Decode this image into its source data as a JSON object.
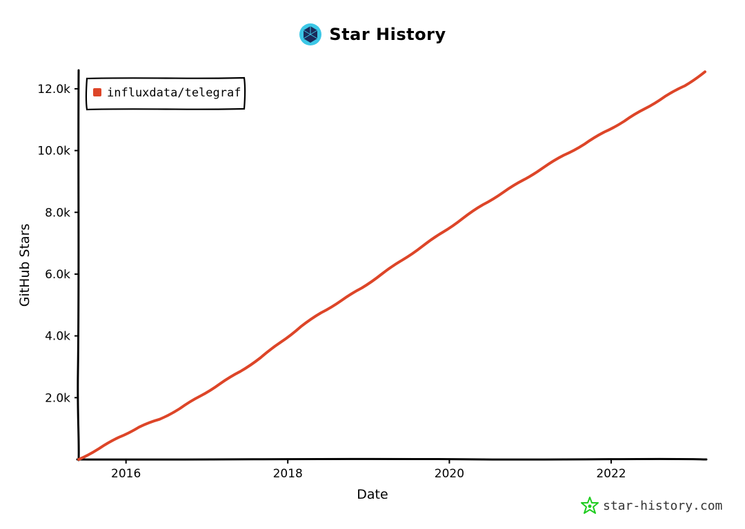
{
  "header": {
    "title": "Star History"
  },
  "watermark": {
    "text": "star-history.com"
  },
  "colors": {
    "series": "#dd4528",
    "axis": "#000000",
    "watermark_icon": "#1fcc1f",
    "logo_bg": "#3cc7e6",
    "logo_fg": "#1b2b5a"
  },
  "chart_data": {
    "type": "line",
    "xlabel": "Date",
    "ylabel": "GitHub Stars",
    "xlim": [
      "2015-06-01",
      "2023-03-01"
    ],
    "ylim": [
      0,
      12600
    ],
    "x_ticks": [
      "2016",
      "2018",
      "2020",
      "2022"
    ],
    "y_ticks": [
      {
        "value": 2000,
        "label": "2.0k"
      },
      {
        "value": 4000,
        "label": "4.0k"
      },
      {
        "value": 6000,
        "label": "6.0k"
      },
      {
        "value": 8000,
        "label": "8.0k"
      },
      {
        "value": 10000,
        "label": "10.0k"
      },
      {
        "value": 12000,
        "label": "12.0k"
      }
    ],
    "legend_position": "top-left",
    "series": [
      {
        "name": "influxdata/telegraf",
        "points": [
          {
            "x": "2015-06-01",
            "y": 0
          },
          {
            "x": "2015-09-01",
            "y": 350
          },
          {
            "x": "2015-12-01",
            "y": 720
          },
          {
            "x": "2016-03-01",
            "y": 1050
          },
          {
            "x": "2016-06-01",
            "y": 1300
          },
          {
            "x": "2016-09-01",
            "y": 1650
          },
          {
            "x": "2016-12-01",
            "y": 2050
          },
          {
            "x": "2017-03-01",
            "y": 2450
          },
          {
            "x": "2017-06-01",
            "y": 2850
          },
          {
            "x": "2017-09-01",
            "y": 3300
          },
          {
            "x": "2017-12-01",
            "y": 3800
          },
          {
            "x": "2018-03-01",
            "y": 4300
          },
          {
            "x": "2018-06-01",
            "y": 4750
          },
          {
            "x": "2018-09-01",
            "y": 5150
          },
          {
            "x": "2018-12-01",
            "y": 5550
          },
          {
            "x": "2019-03-01",
            "y": 6000
          },
          {
            "x": "2019-06-01",
            "y": 6450
          },
          {
            "x": "2019-09-01",
            "y": 6900
          },
          {
            "x": "2019-12-01",
            "y": 7350
          },
          {
            "x": "2020-03-01",
            "y": 7800
          },
          {
            "x": "2020-06-01",
            "y": 8250
          },
          {
            "x": "2020-09-01",
            "y": 8650
          },
          {
            "x": "2020-12-01",
            "y": 9050
          },
          {
            "x": "2021-03-01",
            "y": 9450
          },
          {
            "x": "2021-06-01",
            "y": 9850
          },
          {
            "x": "2021-09-01",
            "y": 10200
          },
          {
            "x": "2021-12-01",
            "y": 10600
          },
          {
            "x": "2022-03-01",
            "y": 10950
          },
          {
            "x": "2022-06-01",
            "y": 11350
          },
          {
            "x": "2022-09-01",
            "y": 11750
          },
          {
            "x": "2022-12-01",
            "y": 12100
          },
          {
            "x": "2023-03-01",
            "y": 12550
          }
        ]
      }
    ]
  }
}
